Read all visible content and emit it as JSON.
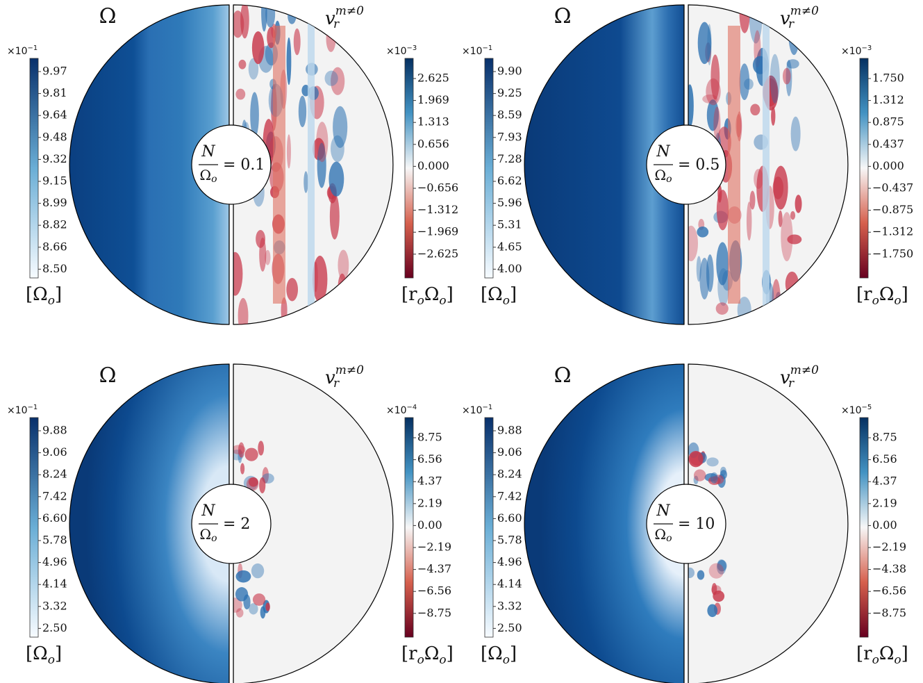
{
  "panels": [
    {
      "left_title": "Ω",
      "right_title": {
        "base": "v",
        "sub": "r",
        "sup": "m≠0"
      },
      "label": {
        "numerator": "N",
        "denominator": "Ω",
        "denominator_sub": "o",
        "value": "= 0.1"
      },
      "left_colorbar": {
        "multiplier": {
          "base": "×10",
          "exp": "−1"
        },
        "ticks": [
          "9.97",
          "9.81",
          "9.64",
          "9.48",
          "9.32",
          "9.15",
          "8.99",
          "8.82",
          "8.66",
          "8.50"
        ],
        "unit": [
          "[Ω",
          "o",
          "]"
        ]
      },
      "right_colorbar": {
        "multiplier": {
          "base": "×10",
          "exp": "−3"
        },
        "ticks": [
          "2.625",
          "1.969",
          "1.313",
          "0.656",
          "0.000",
          "−0.656",
          "−1.312",
          "−1.969",
          "−2.625"
        ],
        "unit": [
          "[r",
          "o",
          "Ω",
          "o",
          "]"
        ]
      }
    },
    {
      "left_title": "Ω",
      "right_title": {
        "base": "v",
        "sub": "r",
        "sup": "m≠0"
      },
      "label": {
        "numerator": "N",
        "denominator": "Ω",
        "denominator_sub": "o",
        "value": "= 0.5"
      },
      "left_colorbar": {
        "multiplier": {
          "base": "×10",
          "exp": "−1"
        },
        "ticks": [
          "9.90",
          "9.25",
          "8.59",
          "7.93",
          "7.28",
          "6.62",
          "5.96",
          "5.31",
          "4.65",
          "4.00"
        ],
        "unit": [
          "[Ω",
          "o",
          "]"
        ]
      },
      "right_colorbar": {
        "multiplier": {
          "base": "×10",
          "exp": "−3"
        },
        "ticks": [
          "1.750",
          "1.312",
          "0.875",
          "0.437",
          "0.000",
          "−0.437",
          "−0.875",
          "−1.312",
          "−1.750"
        ],
        "unit": [
          "[r",
          "o",
          "Ω",
          "o",
          "]"
        ]
      }
    },
    {
      "left_title": "Ω",
      "right_title": {
        "base": "v",
        "sub": "r",
        "sup": "m≠0"
      },
      "label": {
        "numerator": "N",
        "denominator": "Ω",
        "denominator_sub": "o",
        "value": "= 2"
      },
      "left_colorbar": {
        "multiplier": {
          "base": "×10",
          "exp": "−1"
        },
        "ticks": [
          "9.88",
          "9.06",
          "8.24",
          "7.42",
          "6.60",
          "5.78",
          "4.96",
          "4.14",
          "3.32",
          "2.50"
        ],
        "unit": [
          "[Ω",
          "o",
          "]"
        ]
      },
      "right_colorbar": {
        "multiplier": {
          "base": "×10",
          "exp": "−4"
        },
        "ticks": [
          "8.75",
          "6.56",
          "4.37",
          "2.19",
          "0.00",
          "−2.19",
          "−4.37",
          "−6.56",
          "−8.75"
        ],
        "unit": [
          "[r",
          "o",
          "Ω",
          "o",
          "]"
        ]
      }
    },
    {
      "left_title": "Ω",
      "right_title": {
        "base": "v",
        "sub": "r",
        "sup": "m≠0"
      },
      "label": {
        "numerator": "N",
        "denominator": "Ω",
        "denominator_sub": "o",
        "value": "= 10"
      },
      "left_colorbar": {
        "multiplier": {
          "base": "×10",
          "exp": "−1"
        },
        "ticks": [
          "9.88",
          "9.06",
          "8.24",
          "7.42",
          "6.60",
          "5.78",
          "4.96",
          "4.14",
          "3.32",
          "2.50"
        ],
        "unit": [
          "[Ω",
          "o",
          "]"
        ]
      },
      "right_colorbar": {
        "multiplier": {
          "base": "×10",
          "exp": "−5"
        },
        "ticks": [
          "8.75",
          "6.56",
          "4.37",
          "2.19",
          "0.00",
          "−2.19",
          "−4.38",
          "−6.56",
          "−8.75"
        ],
        "unit": [
          "[r",
          "o",
          "Ω",
          "o",
          "]"
        ]
      }
    }
  ]
}
